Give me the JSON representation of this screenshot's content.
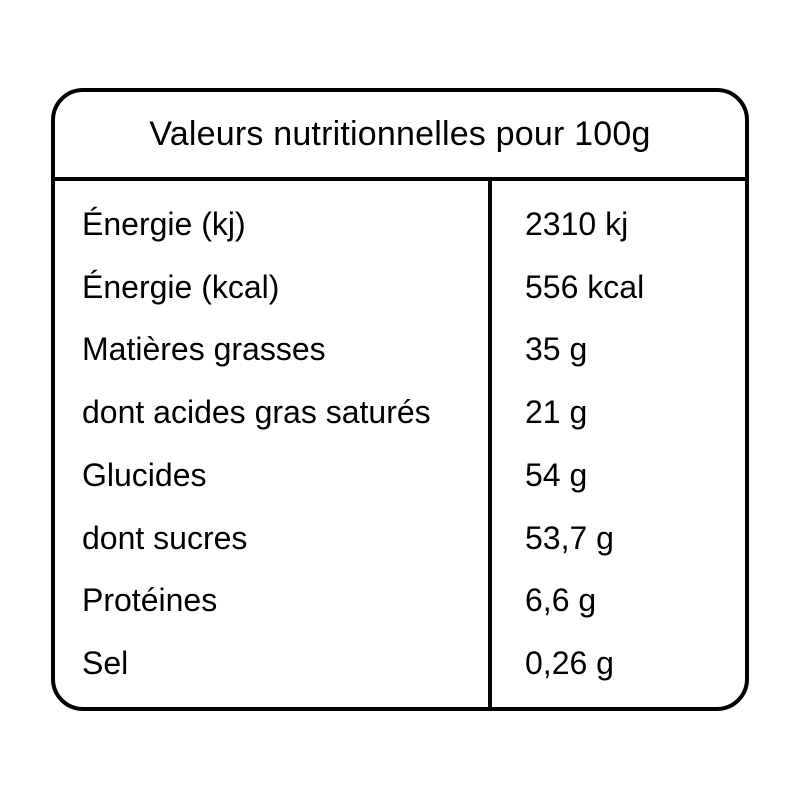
{
  "label": {
    "title": "Valeurs nutritionnelles pour 100g",
    "rows": [
      {
        "label": "Énergie (kj)",
        "value": "2310 kj"
      },
      {
        "label": "Énergie (kcal)",
        "value": "556 kcal"
      },
      {
        "label": "Matières grasses",
        "value": "35 g"
      },
      {
        "label": "dont acides gras saturés",
        "value": "21 g"
      },
      {
        "label": "Glucides",
        "value": "54 g"
      },
      {
        "label": "dont sucres",
        "value": "53,7 g"
      },
      {
        "label": "Protéines",
        "value": "6,6 g"
      },
      {
        "label": "Sel",
        "value": "0,26 g"
      }
    ]
  },
  "colors": {
    "border": "#000000",
    "text": "#000000",
    "background": "#ffffff"
  }
}
